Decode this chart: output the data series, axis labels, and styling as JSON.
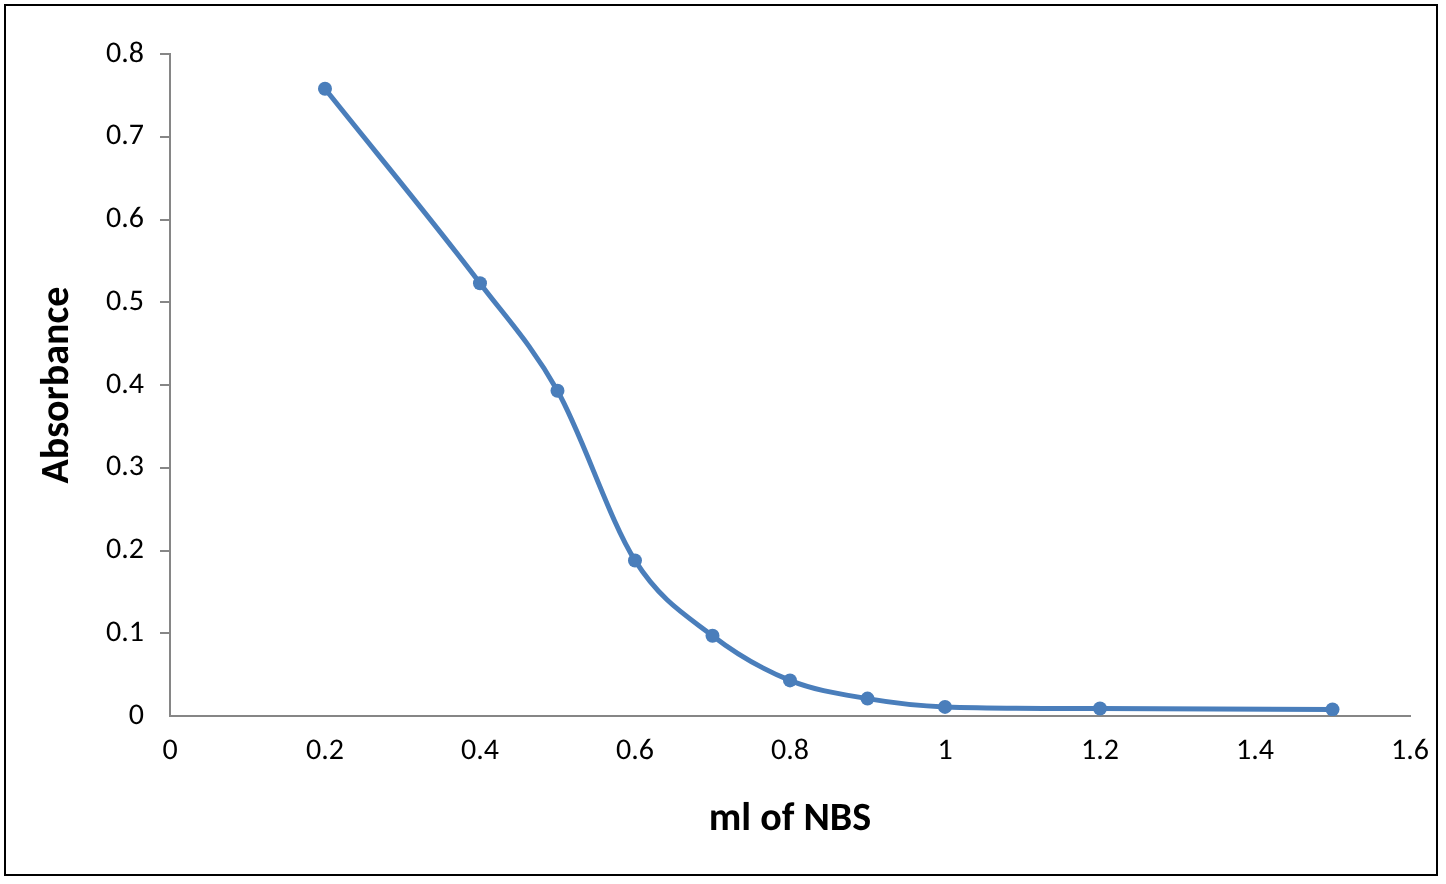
{
  "chart_data": {
    "type": "line",
    "xlabel": "ml of NBS",
    "ylabel": "Absorbance",
    "x": [
      0.2,
      0.4,
      0.5,
      0.6,
      0.7,
      0.8,
      0.9,
      1.0,
      1.2,
      1.5
    ],
    "series": [
      {
        "color": "#4a7ebb",
        "values": [
          0.758,
          0.523,
          0.393,
          0.188,
          0.097,
          0.043,
          0.021,
          0.011,
          0.009,
          0.008
        ]
      }
    ],
    "xlim": [
      0,
      1.6
    ],
    "xticks": [
      0,
      0.2,
      0.4,
      0.6,
      0.8,
      1,
      1.2,
      1.4,
      1.6
    ],
    "ylim": [
      0,
      0.8
    ],
    "yticks": [
      0,
      0.1,
      0.2,
      0.3,
      0.4,
      0.5,
      0.6,
      0.7,
      0.8
    ],
    "grid": false,
    "legend": false,
    "marker": "circle",
    "line_style": "solid"
  }
}
